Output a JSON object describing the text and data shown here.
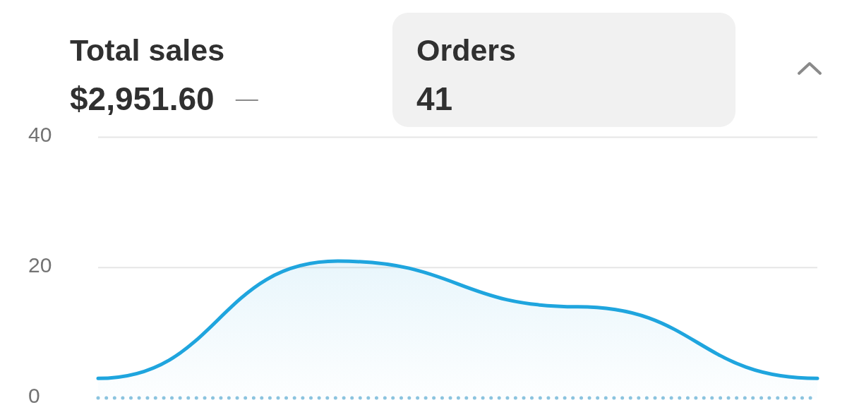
{
  "chart_data": {
    "type": "area",
    "title": "Orders",
    "subtitle": "41",
    "annotations": [
      "Total sales",
      "$2,951.60",
      "—"
    ],
    "categories": [
      null,
      null,
      null,
      null
    ],
    "series": [
      {
        "color": "#1fa5de",
        "values": [
          3,
          21,
          14,
          3
        ]
      },
      {
        "type": "line",
        "color": "#8cc4df",
        "line_style": "dotted",
        "values": [
          0,
          0,
          0,
          0
        ]
      }
    ],
    "ylim": [
      0,
      40
    ],
    "yticks": [
      0,
      20,
      40
    ],
    "grid": "y",
    "tick_labels": "y"
  }
}
